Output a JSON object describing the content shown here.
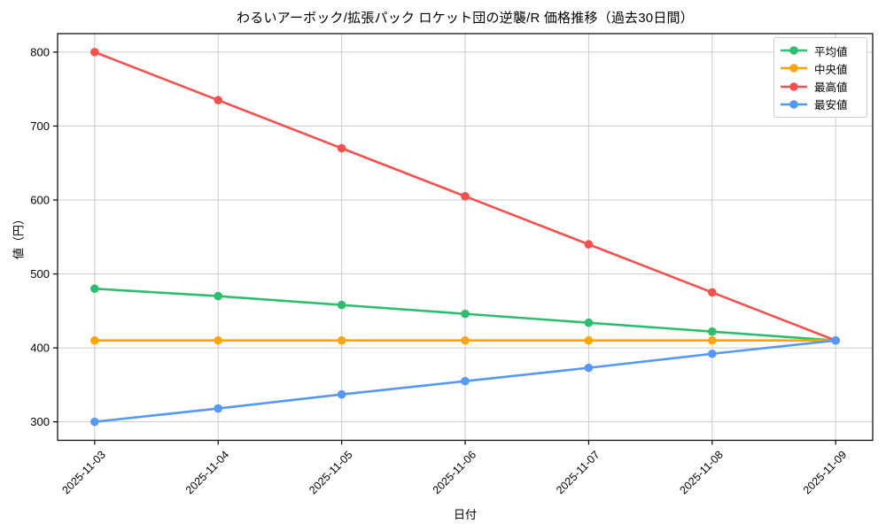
{
  "chart_data": {
    "type": "line",
    "title": "わるいアーボック/拡張パック ロケット団の逆襲/R 価格推移（過去30日間）",
    "xlabel": "日付",
    "ylabel": "値（円）",
    "categories": [
      "2025-11-03",
      "2025-11-04",
      "2025-11-05",
      "2025-11-06",
      "2025-11-07",
      "2025-11-08",
      "2025-11-09"
    ],
    "series": [
      {
        "name": "平均値",
        "color": "#2ebd6e",
        "values": [
          480,
          470,
          458,
          446,
          434,
          422,
          410
        ]
      },
      {
        "name": "中央値",
        "color": "#ffa502",
        "values": [
          410,
          410,
          410,
          410,
          410,
          410,
          410
        ]
      },
      {
        "name": "最高値",
        "color": "#f4514e",
        "values": [
          800,
          735,
          670,
          605,
          540,
          475,
          410
        ]
      },
      {
        "name": "最安値",
        "color": "#5598f7",
        "values": [
          300,
          318,
          337,
          355,
          373,
          392,
          410
        ]
      }
    ],
    "y_ticks": [
      300,
      400,
      500,
      600,
      700,
      800
    ],
    "ylim": [
      275,
      825
    ],
    "x_margin": 0.3,
    "grid": true,
    "legend_position": "top-right"
  },
  "style": {
    "grid_color": "#cccccc",
    "spine_color": "#000000",
    "tick_color": "#000000",
    "background": "#ffffff"
  }
}
